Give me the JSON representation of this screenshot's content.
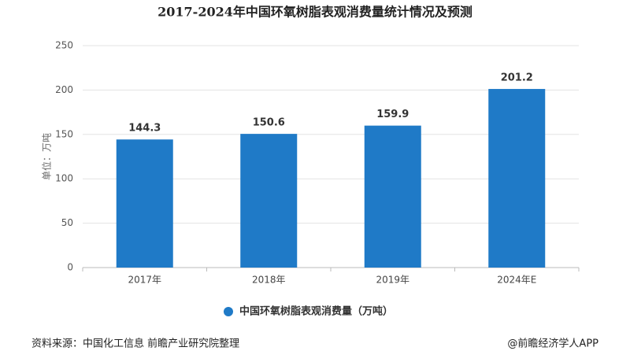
{
  "chart_data": {
    "type": "bar",
    "title": "2017-2024年中国环氧树脂表观消费量统计情况及预测",
    "y_label": "单位：万吨",
    "categories": [
      "2017年",
      "2018年",
      "2019年",
      "2024年E"
    ],
    "series": [
      {
        "name": "中国环氧树脂表观消费量（万吨）",
        "color": "#1f7ac7",
        "values": [
          144.3,
          150.6,
          159.9,
          201.2
        ]
      }
    ],
    "ylim": [
      0,
      250
    ],
    "yticks": [
      0,
      50,
      100,
      150,
      200,
      250
    ],
    "grid": true,
    "legend": "bottom",
    "source": "资料来源：中国化工信息 前瞻产业研究院整理",
    "credit": "@前瞻经济学人APP"
  }
}
